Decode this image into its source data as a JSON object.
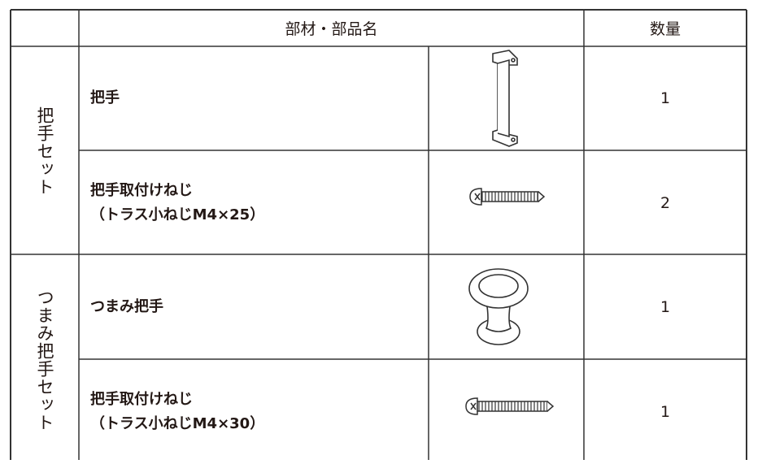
{
  "header": {
    "name": "部材・部品名",
    "quantity": "数量"
  },
  "groups": [
    {
      "label": "把手セット",
      "items": [
        {
          "name": [
            "把手"
          ],
          "quantity": 1
        },
        {
          "name": [
            "把手取付けねじ",
            "（トラス小ねじM4×25）"
          ],
          "quantity": 2
        }
      ]
    },
    {
      "label": "つまみ把手セット",
      "items": [
        {
          "name": [
            "つまみ把手"
          ],
          "quantity": 1
        },
        {
          "name": [
            "把手取付けねじ",
            "（トラス小ねじM4×30）"
          ],
          "quantity": 1
        }
      ]
    }
  ]
}
